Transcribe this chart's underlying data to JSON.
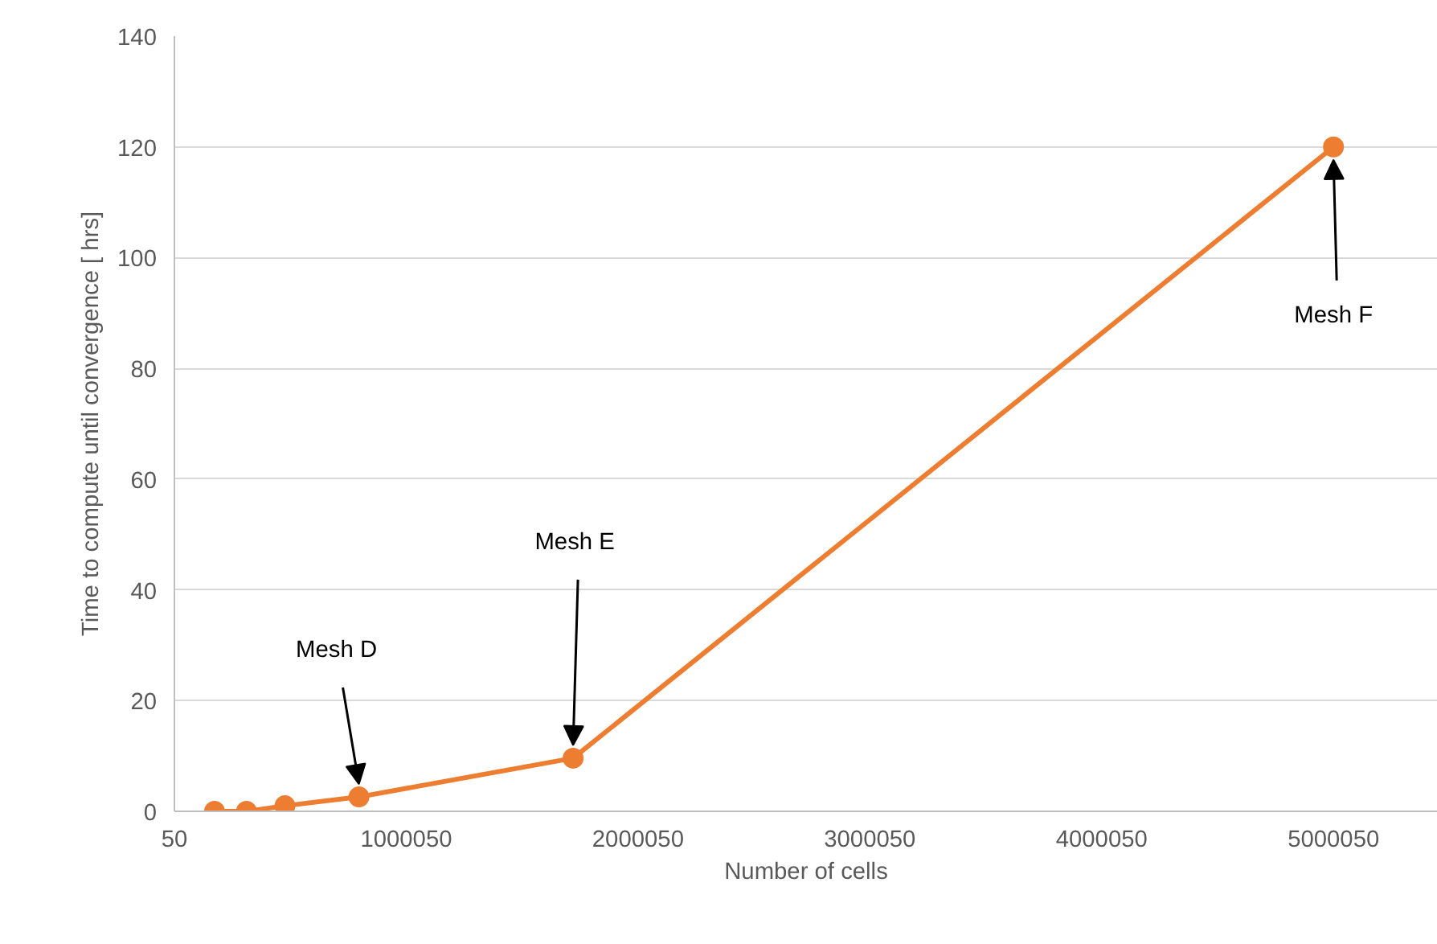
{
  "chart_data": {
    "type": "line",
    "xlabel": "Number of cells",
    "ylabel": "Time to compute until convergence [ hrs]",
    "x": [
      173000,
      311000,
      477000,
      796000,
      1720000,
      5000000
    ],
    "series": [
      {
        "color": "#ed7d31",
        "values": [
          0,
          0,
          1,
          2.6,
          9.6,
          120
        ]
      }
    ],
    "xlim": [
      50,
      5450050
    ],
    "xticks": [
      50,
      1000050,
      2000050,
      3000050,
      4000050,
      5000050
    ],
    "ylim": [
      0,
      140
    ],
    "yticks": [
      0,
      20,
      40,
      60,
      80,
      100,
      120,
      140
    ],
    "grid": "y",
    "marker": "circle",
    "line_style": "solid",
    "annotations": [
      {
        "text": "Mesh D",
        "x": 796000,
        "y": 2.6
      },
      {
        "text": "Mesh E",
        "x": 1720000,
        "y": 9.6
      },
      {
        "text": "Mesh F",
        "x": 5000000,
        "y": 120
      }
    ]
  }
}
